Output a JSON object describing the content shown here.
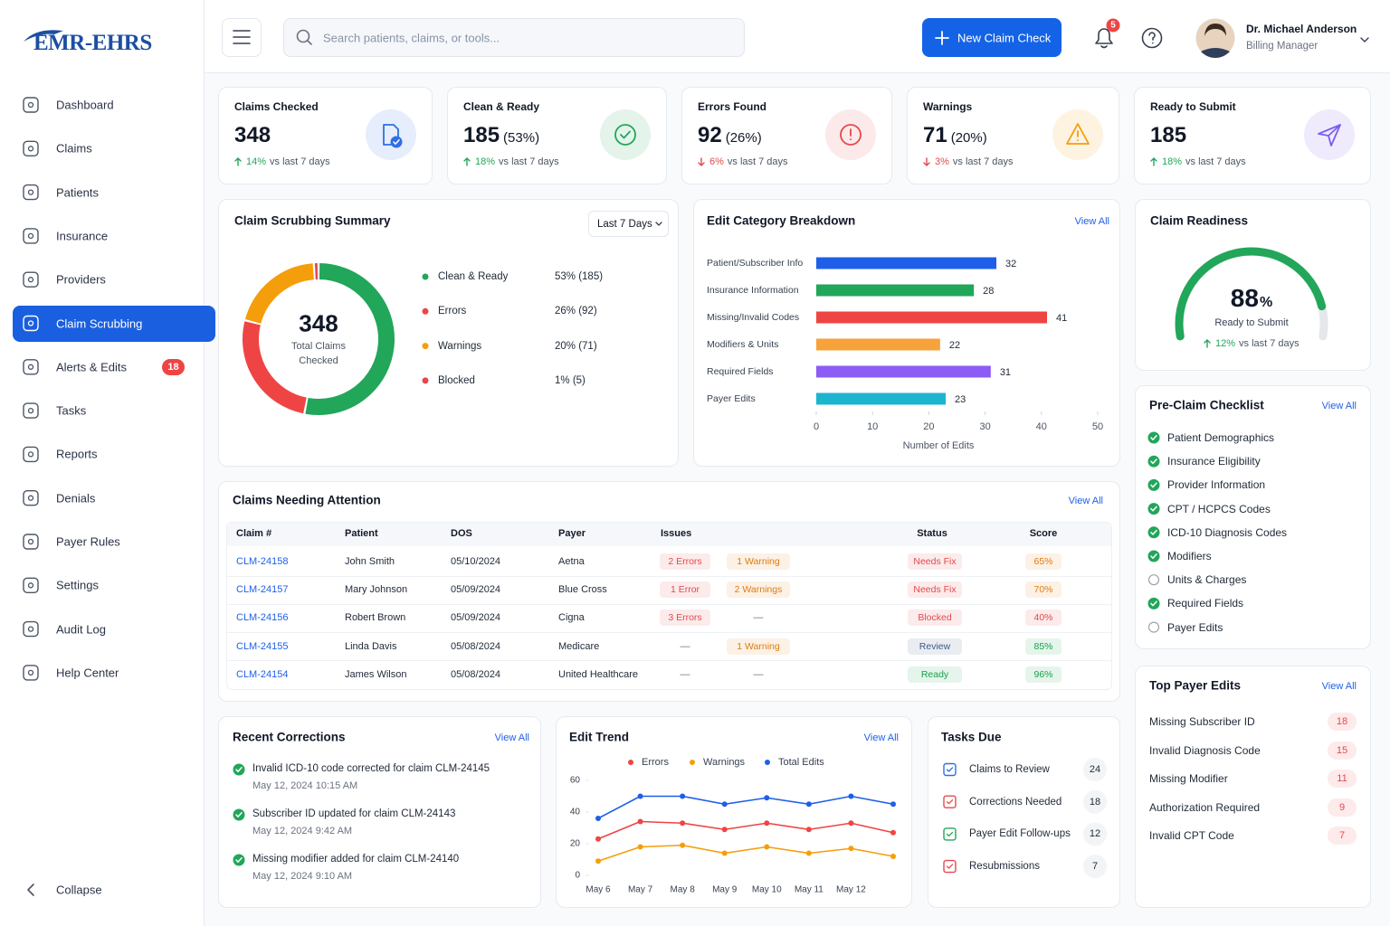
{
  "header": {
    "logo": "EMR-EHRS",
    "search_placeholder": "Search patients, claims, or tools...",
    "new_button": "New Claim Check",
    "notifications": 5,
    "user_name": "Dr. Michael Anderson",
    "user_role": "Billing Manager"
  },
  "sidebar": {
    "items": [
      {
        "label": "Dashboard"
      },
      {
        "label": "Claims"
      },
      {
        "label": "Patients"
      },
      {
        "label": "Insurance"
      },
      {
        "label": "Providers"
      },
      {
        "label": "Claim Scrubbing",
        "active": true
      },
      {
        "label": "Alerts & Edits",
        "badge": 18
      },
      {
        "label": "Tasks"
      },
      {
        "label": "Reports"
      },
      {
        "label": "Denials"
      },
      {
        "label": "Payer Rules"
      },
      {
        "label": "Settings"
      },
      {
        "label": "Audit Log"
      },
      {
        "label": "Help Center"
      }
    ],
    "collapse": "Collapse"
  },
  "trend_colors": {
    "up": "#22a65a",
    "down": "#e5484d"
  },
  "kpis": [
    {
      "title": "Claims Checked",
      "value": 348,
      "change": "14%",
      "change_text": "vs last 7 days",
      "trend": "up",
      "color": "#2f6fe4"
    },
    {
      "title": "Clean & Ready",
      "value": 185,
      "share": "(53%)",
      "change": "18%",
      "change_text": "vs last 7 days",
      "trend": "up",
      "color": "#22a65a"
    },
    {
      "title": "Errors Found",
      "value": 92,
      "share": "(26%)",
      "change": "6%",
      "change_text": "vs last 7 days",
      "trend": "down",
      "color": "#e5484d"
    },
    {
      "title": "Warnings",
      "value": 71,
      "share": "(20%)",
      "change": "3%",
      "change_text": "vs last 7 days",
      "trend": "down",
      "color": "#f59e0b"
    },
    {
      "title": "Ready to Submit",
      "value": 185,
      "change": "18%",
      "change_text": "vs last 7 days",
      "trend": "up",
      "color": "#7c5cf0"
    }
  ],
  "chart_data": [
    {
      "type": "donut",
      "title": "Claim Scrubbing Summary",
      "filter": "Last 7 Days",
      "center_value": 348,
      "center_label": "Total Claims Checked",
      "categories": [
        "Clean & Ready",
        "Errors",
        "Warnings",
        "Blocked"
      ],
      "values": [
        53,
        26,
        20,
        1
      ],
      "value_labels": [
        "53% (185)",
        "26% (92)",
        "20% (71)",
        "1% (5)"
      ],
      "colors": [
        "#22a65a",
        "#ef4444",
        "#f59e0b",
        "#e5484d"
      ]
    },
    {
      "type": "bar",
      "orientation": "horizontal",
      "title": "Edit Category Breakdown",
      "link": "View All",
      "categories": [
        "Patient/Subscriber Info",
        "Insurance Information",
        "Missing/Invalid Codes",
        "Modifiers & Units",
        "Required Fields",
        "Payer Edits"
      ],
      "values": [
        32,
        28,
        41,
        22,
        31,
        23
      ],
      "colors": [
        "#1f5fe8",
        "#22a65a",
        "#ef4444",
        "#f7a23b",
        "#8b5cf6",
        "#1cb5d0"
      ],
      "xlim": [
        0,
        50
      ],
      "xticks": [
        0,
        10,
        20,
        30,
        40,
        50
      ],
      "xlabel": "Number of Edits"
    },
    {
      "type": "line",
      "title": "Edit Trend",
      "link": "View All",
      "categories": [
        "May 6",
        "May 7",
        "May 8",
        "May 9",
        "May 10",
        "May 11",
        "May 12",
        null
      ],
      "series": [
        {
          "name": "Errors",
          "color": "#ef4444",
          "values": [
            23,
            34,
            33,
            29,
            33,
            29,
            33,
            27
          ]
        },
        {
          "name": "Warnings",
          "color": "#f59e0b",
          "values": [
            9,
            18,
            19,
            14,
            18,
            14,
            17,
            12
          ]
        },
        {
          "name": "Total Edits",
          "color": "#1f5fe8",
          "values": [
            36,
            50,
            50,
            45,
            49,
            45,
            50,
            45
          ]
        }
      ],
      "ylim": [
        0,
        60
      ],
      "yticks": [
        0,
        20,
        40,
        60
      ]
    },
    {
      "type": "gauge",
      "title": "Claim Readiness",
      "value": 88,
      "unit": "%",
      "ylim": [
        0,
        100
      ],
      "label": "Ready to Submit",
      "change": "12%",
      "change_text": "vs last 7 days",
      "trend": "up",
      "color": "#22a65a"
    }
  ],
  "attention": {
    "title": "Claims Needing Attention",
    "link": "View All",
    "columns": [
      "Claim #",
      "Patient",
      "DOS",
      "Payer",
      "Issues",
      "Status",
      "Score"
    ],
    "rows": [
      {
        "claim": "CLM-24158",
        "patient": "John Smith",
        "dos": "05/10/2024",
        "payer": "Aetna",
        "errors": "2 Errors",
        "errors_color": "#e5484d",
        "warnings": "1 Warning",
        "warnings_color": "#e07b12",
        "status": "Needs Fix",
        "status_color": "#e5484d",
        "score": "65%",
        "score_color": "#e07b12"
      },
      {
        "claim": "CLM-24157",
        "patient": "Mary Johnson",
        "dos": "05/09/2024",
        "payer": "Blue Cross",
        "errors": "1 Error",
        "errors_color": "#e5484d",
        "warnings": "2 Warnings",
        "warnings_color": "#e07b12",
        "status": "Needs Fix",
        "status_color": "#e5484d",
        "score": "70%",
        "score_color": "#e07b12"
      },
      {
        "claim": "CLM-24156",
        "patient": "Robert Brown",
        "dos": "05/09/2024",
        "payer": "Cigna",
        "errors": "3 Errors",
        "errors_color": "#e5484d",
        "warnings": "—",
        "status": "Blocked",
        "status_color": "#e5484d",
        "score": "40%",
        "score_color": "#e5484d"
      },
      {
        "claim": "CLM-24155",
        "patient": "Linda Davis",
        "dos": "05/08/2024",
        "payer": "Medicare",
        "errors": "—",
        "warnings": "1 Warning",
        "warnings_color": "#e07b12",
        "status": "Review",
        "status_color": "#3b5a8a",
        "score": "85%",
        "score_color": "#16a34a"
      },
      {
        "claim": "CLM-24154",
        "patient": "James Wilson",
        "dos": "05/08/2024",
        "payer": "United Healthcare",
        "errors": "—",
        "warnings": "—",
        "status": "Ready",
        "status_color": "#16a34a",
        "score": "96%",
        "score_color": "#16a34a"
      }
    ]
  },
  "checklist": {
    "title": "Pre-Claim Checklist",
    "link": "View All",
    "items": [
      {
        "label": "Patient Demographics",
        "done": true
      },
      {
        "label": "Insurance Eligibility",
        "done": true
      },
      {
        "label": "Provider Information",
        "done": true
      },
      {
        "label": "CPT / HCPCS Codes",
        "done": true
      },
      {
        "label": "ICD-10 Diagnosis Codes",
        "done": true
      },
      {
        "label": "Modifiers",
        "done": true
      },
      {
        "label": "Units & Charges",
        "done": false
      },
      {
        "label": "Required Fields",
        "done": true
      },
      {
        "label": "Payer Edits",
        "done": false
      }
    ]
  },
  "payer_edits": {
    "title": "Top Payer Edits",
    "link": "View All",
    "items": [
      {
        "label": "Missing Subscriber ID",
        "count": 18
      },
      {
        "label": "Invalid Diagnosis Code",
        "count": 15
      },
      {
        "label": "Missing Modifier",
        "count": 11
      },
      {
        "label": "Authorization Required",
        "count": 9
      },
      {
        "label": "Invalid CPT Code",
        "count": 7
      }
    ]
  },
  "corrections": {
    "title": "Recent Corrections",
    "link": "View All",
    "items": [
      {
        "text": "Invalid ICD-10 code corrected for claim CLM-24145",
        "time": "May 12, 2024 10:15 AM"
      },
      {
        "text": "Subscriber ID updated for claim CLM-24143",
        "time": "May 12, 2024 9:42 AM"
      },
      {
        "text": "Missing modifier added for claim CLM-24140",
        "time": "May 12, 2024 9:10 AM"
      }
    ]
  },
  "tasks": {
    "title": "Tasks Due",
    "items": [
      {
        "label": "Claims to Review",
        "count": 24,
        "color": "#2f6fe4"
      },
      {
        "label": "Corrections Needed",
        "count": 18,
        "color": "#e5484d"
      },
      {
        "label": "Payer Edit Follow-ups",
        "count": 12,
        "color": "#22a65a"
      },
      {
        "label": "Resubmissions",
        "count": 7,
        "color": "#e5484d"
      }
    ]
  }
}
